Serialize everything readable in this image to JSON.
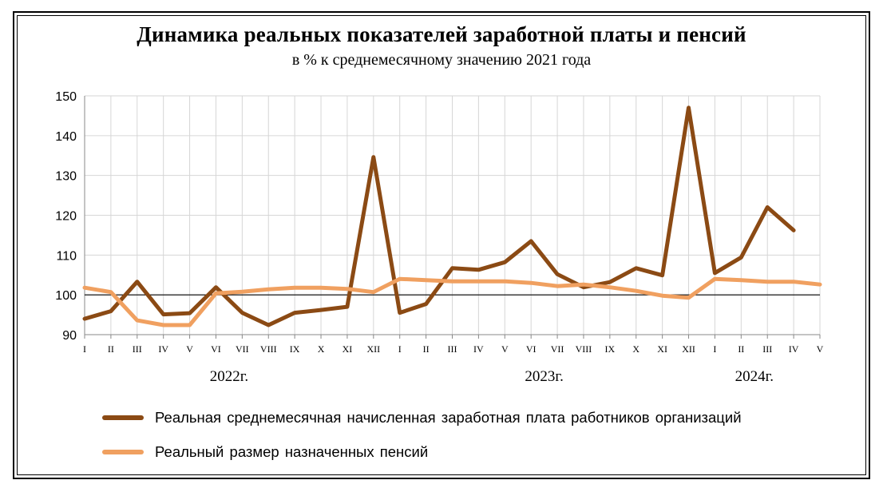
{
  "chart_data": {
    "type": "line",
    "title": "Динамика реальных показателей заработной платы и пенсий",
    "subtitle": "в % к среднемесячному значению 2021 года",
    "x_tick_labels": [
      "I",
      "II",
      "III",
      "IV",
      "V",
      "VI",
      "VII",
      "VIII",
      "IX",
      "X",
      "XI",
      "XII",
      "I",
      "II",
      "III",
      "IV",
      "V",
      "VI",
      "VII",
      "VIII",
      "IX",
      "X",
      "XI",
      "XII",
      "I",
      "II",
      "III",
      "IV",
      "V"
    ],
    "year_labels": [
      {
        "label": "2022г.",
        "center_index": 5.5
      },
      {
        "label": "2023г.",
        "center_index": 17.5
      },
      {
        "label": "2024г.",
        "center_index": 25.5
      }
    ],
    "ylim": [
      90,
      150
    ],
    "yticks": [
      90,
      100,
      110,
      120,
      130,
      140,
      150
    ],
    "reference_line": 100,
    "grid": true,
    "series": [
      {
        "name": "Реальная среднемесячная начисленная заработная плата работников организаций",
        "color": "#8B4A14",
        "values": [
          94,
          95.9,
          103.3,
          95.1,
          95.4,
          101.9,
          95.5,
          92.4,
          95.5,
          96.2,
          97,
          134.6,
          95.5,
          97.7,
          106.7,
          106.3,
          108.2,
          113.5,
          105.2,
          101.9,
          103.2,
          106.7,
          104.9,
          147,
          105.5,
          109.4,
          122,
          116.2,
          null
        ]
      },
      {
        "name": "Реальный размер назначенных пенсий",
        "color": "#F0A060",
        "values": [
          101.8,
          100.7,
          93.6,
          92.4,
          92.4,
          100.4,
          100.8,
          101.4,
          101.8,
          101.8,
          101.5,
          100.7,
          104,
          103.7,
          103.4,
          103.4,
          103.4,
          103,
          102.2,
          102.6,
          101.9,
          101,
          99.8,
          99.3,
          104,
          103.7,
          103.3,
          103.3,
          102.6
        ]
      }
    ],
    "legend_position": "bottom"
  }
}
